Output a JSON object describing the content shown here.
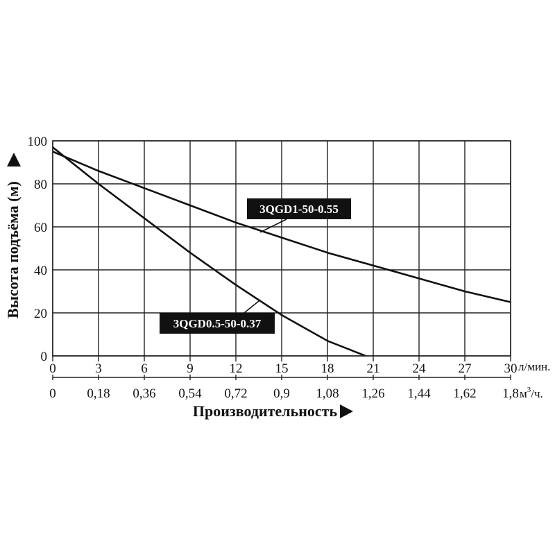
{
  "chart_data": {
    "type": "line",
    "xlabel": "Производительность",
    "ylabel": "Высота подъёма (м)",
    "x_unit_primary": "л/мин.",
    "x_unit_secondary_base": "м",
    "x_unit_secondary_sup": "3",
    "x_unit_secondary_tail": "/ч.",
    "xlim": [
      0,
      30
    ],
    "ylim": [
      0,
      100
    ],
    "x_ticks": [
      "0",
      "3",
      "6",
      "9",
      "12",
      "15",
      "18",
      "21",
      "24",
      "27",
      "30"
    ],
    "x_ticks_secondary": [
      "0",
      "0,18",
      "0,36",
      "0,54",
      "0,72",
      "0,9",
      "1,08",
      "1,26",
      "1,44",
      "1,62",
      "1,8"
    ],
    "y_ticks": [
      "0",
      "20",
      "40",
      "60",
      "80",
      "100"
    ],
    "grid": true,
    "series": [
      {
        "name": "3QGD1-50-0.55",
        "x": [
          0,
          3,
          6,
          9,
          12,
          15,
          18,
          21,
          24,
          27,
          30
        ],
        "y": [
          95,
          86,
          78,
          70,
          62,
          55,
          48,
          42,
          36,
          30,
          25
        ]
      },
      {
        "name": "3QGD0.5-50-0.37",
        "x": [
          0,
          3,
          6,
          9,
          12,
          15,
          18,
          20.5
        ],
        "y": [
          97,
          80,
          64,
          48,
          33,
          19,
          7,
          0
        ]
      }
    ]
  }
}
